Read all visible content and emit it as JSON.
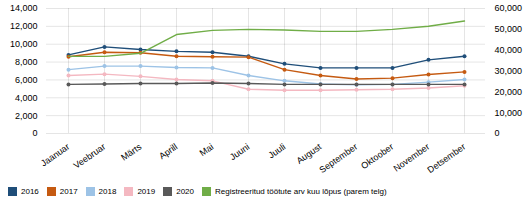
{
  "chart_data": {
    "type": "line",
    "categories": [
      "Jaanuar",
      "Veebruar",
      "Märts",
      "Aprill",
      "Mai",
      "Juuni",
      "Juuli",
      "August",
      "September",
      "Oktoober",
      "November",
      "Detsember"
    ],
    "series": [
      {
        "name": "2016",
        "color": "#1f4e79",
        "marker": "circle",
        "values": [
          8800,
          9700,
          9400,
          9200,
          9100,
          8650,
          7800,
          7350,
          7350,
          7350,
          8250,
          8650
        ]
      },
      {
        "name": "2017",
        "color": "#c55a11",
        "marker": "circle",
        "values": [
          8600,
          9100,
          9050,
          8650,
          8600,
          8550,
          7150,
          6500,
          6100,
          6200,
          6600,
          6900
        ]
      },
      {
        "name": "2018",
        "color": "#9dc3e6",
        "marker": "circle",
        "values": [
          7150,
          7550,
          7550,
          7400,
          7350,
          6500,
          5900,
          5550,
          5450,
          5500,
          5750,
          6050
        ]
      },
      {
        "name": "2019",
        "color": "#f4b8c1",
        "marker": "circle",
        "values": [
          6500,
          6650,
          6400,
          6050,
          5900,
          4950,
          4850,
          4850,
          4900,
          4950,
          5100,
          5350
        ]
      },
      {
        "name": "2020",
        "color": "#595959",
        "marker": "circle",
        "values": [
          5500,
          5550,
          5600,
          5600,
          5650,
          5600,
          5500,
          5500,
          5500,
          5500,
          5500,
          5500
        ]
      },
      {
        "name": "Registreeritud töötute arv kuu lõpus (parem telg)",
        "color": "#70ad47",
        "axis": "y2",
        "values": [
          37000,
          37000,
          38500,
          47500,
          49500,
          50000,
          49700,
          49000,
          49000,
          50000,
          51500,
          54000
        ]
      }
    ],
    "ylim": [
      0,
      14000
    ],
    "yticks": [
      0,
      {
        "value": 2000,
        "label": "2,000"
      },
      {
        "value": 4000,
        "label": "4,000"
      },
      {
        "value": 6000,
        "label": "6,000"
      },
      {
        "value": 8000,
        "label": "8,000"
      },
      {
        "value": 10000,
        "label": "10,000"
      },
      {
        "value": 12000,
        "label": "12,000"
      },
      {
        "value": 14000,
        "label": "14,000"
      }
    ],
    "y2lim": [
      0,
      60000
    ],
    "y2ticks": [
      0,
      {
        "value": 10000,
        "label": "10,000"
      },
      {
        "value": 20000,
        "label": "20,000"
      },
      {
        "value": 30000,
        "label": "30,000"
      },
      {
        "value": 40000,
        "label": "40,000"
      },
      {
        "value": 50000,
        "label": "50,000"
      },
      {
        "value": 60000,
        "label": "60,000"
      }
    ],
    "grid": true,
    "legend": "bottom"
  }
}
